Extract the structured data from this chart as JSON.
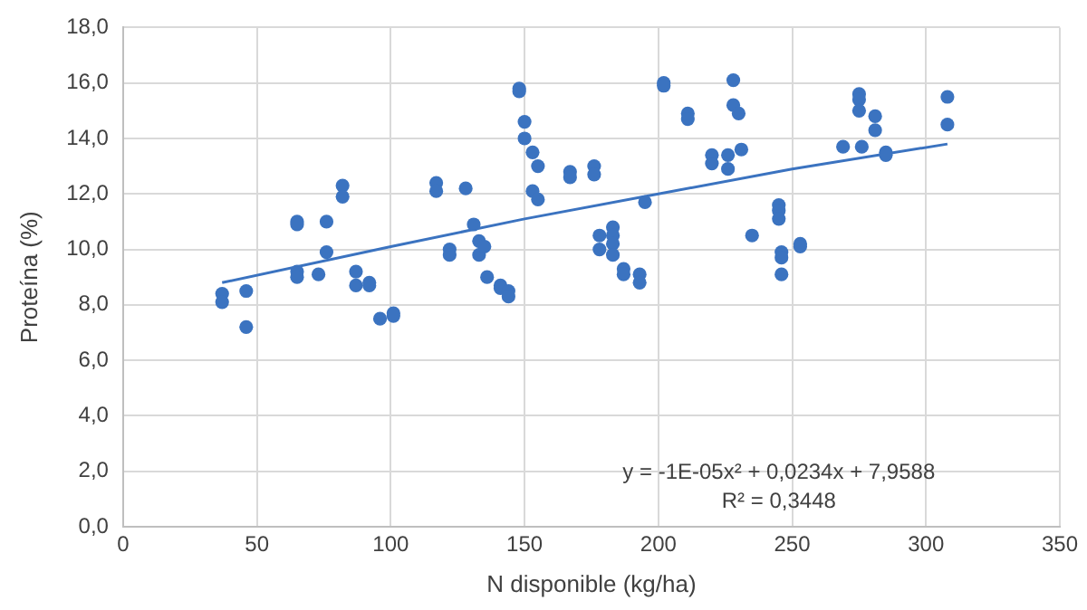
{
  "chart_data": {
    "type": "scatter",
    "xlabel": "N disponible (kg/ha)",
    "ylabel": "Proteína (%)",
    "xlim": [
      0,
      350
    ],
    "xticks": [
      0,
      50,
      100,
      150,
      200,
      250,
      300,
      350
    ],
    "ylim": [
      0,
      18
    ],
    "yticks": [
      {
        "value": 0,
        "label": "0,0"
      },
      {
        "value": 2,
        "label": "2,0"
      },
      {
        "value": 4,
        "label": "4,0"
      },
      {
        "value": 6,
        "label": "6,0"
      },
      {
        "value": 8,
        "label": "8,0"
      },
      {
        "value": 10,
        "label": "10,0"
      },
      {
        "value": 12,
        "label": "12,0"
      },
      {
        "value": 14,
        "label": "14,0"
      },
      {
        "value": 16,
        "label": "16,0"
      },
      {
        "value": 18,
        "label": "18,0"
      }
    ],
    "grid": true,
    "legend": false,
    "marker": "circle",
    "annotations": [
      "y = -1E-05x² + 0,0234x + 7,9588",
      "R² = 0,3448"
    ],
    "series": [
      {
        "color": "#3b73c0",
        "x": [
          37,
          37,
          46,
          46,
          65,
          65,
          65,
          65,
          73,
          76,
          76,
          82,
          82,
          87,
          87,
          92,
          92,
          96,
          101,
          101,
          117,
          117,
          122,
          122,
          128,
          131,
          133,
          133,
          135,
          136,
          141,
          141,
          144,
          144,
          148,
          148,
          150,
          150,
          153,
          153,
          155,
          155,
          167,
          167,
          176,
          176,
          178,
          178,
          183,
          183,
          183,
          183,
          187,
          187,
          193,
          193,
          195,
          202,
          202,
          211,
          211,
          220,
          220,
          226,
          226,
          228,
          228,
          230,
          231,
          235,
          245,
          245,
          245,
          246,
          246,
          246,
          253,
          253,
          269,
          275,
          275,
          275,
          276,
          281,
          281,
          285,
          285,
          308,
          308
        ],
        "values": [
          8.4,
          8.1,
          8.5,
          7.2,
          11.0,
          10.9,
          9.2,
          9.0,
          9.1,
          11.0,
          9.9,
          12.3,
          11.9,
          9.2,
          8.7,
          8.8,
          8.7,
          7.5,
          7.7,
          7.6,
          12.4,
          12.1,
          10.0,
          9.8,
          12.2,
          10.9,
          10.3,
          9.8,
          10.1,
          9.0,
          8.7,
          8.6,
          8.5,
          8.3,
          15.8,
          15.7,
          14.6,
          14.0,
          13.5,
          12.1,
          13.0,
          11.8,
          12.8,
          12.6,
          13.0,
          12.7,
          10.5,
          10.0,
          10.8,
          10.5,
          10.2,
          9.8,
          9.3,
          9.1,
          9.1,
          8.8,
          11.7,
          16.0,
          15.9,
          14.9,
          14.7,
          13.4,
          13.1,
          13.4,
          12.9,
          16.1,
          15.2,
          14.9,
          13.6,
          10.5,
          11.6,
          11.4,
          11.1,
          9.9,
          9.7,
          9.1,
          10.2,
          10.1,
          13.7,
          15.6,
          15.4,
          15.0,
          13.7,
          14.8,
          14.3,
          13.5,
          13.4,
          15.5,
          14.5
        ]
      },
      {
        "type": "line",
        "color": "#3b73c0",
        "marker": "none",
        "x": [
          37,
          100,
          150,
          200,
          250,
          308
        ],
        "values": [
          8.8,
          10.1,
          11.1,
          12.0,
          12.9,
          13.8
        ]
      }
    ]
  }
}
